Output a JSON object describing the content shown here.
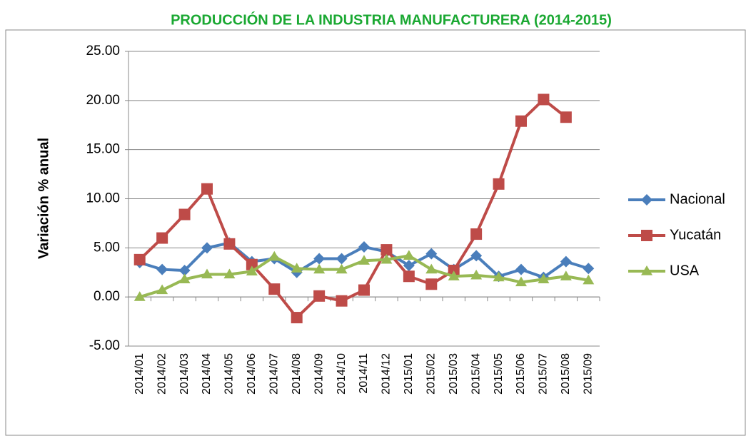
{
  "chart_data": {
    "type": "line",
    "title": "PRODUCCIÓN DE LA INDUSTRIA MANUFACTURERA (2014-2015)",
    "y_label": "Variación % anual",
    "categories": [
      "2014/01",
      "2014/02",
      "2014/03",
      "2014/04",
      "2014/05",
      "2014/06",
      "2014/07",
      "2014/08",
      "2014/09",
      "2014/10",
      "2014/11",
      "2014/12",
      "2015/01",
      "2015/02",
      "2015/03",
      "2015/04",
      "2015/05",
      "2015/06",
      "2015/07",
      "2015/08",
      "2015/09"
    ],
    "series": [
      {
        "name": "Nacional",
        "color": "#4a7ebb",
        "marker": "diamond",
        "values": [
          3.5,
          2.8,
          2.7,
          5.0,
          5.5,
          3.6,
          3.9,
          2.5,
          3.9,
          3.9,
          5.1,
          4.6,
          3.2,
          4.4,
          2.8,
          4.2,
          2.1,
          2.8,
          2.0,
          3.6,
          2.9
        ]
      },
      {
        "name": "Yucatán",
        "color": "#be4b48",
        "marker": "square",
        "values": [
          3.8,
          6.0,
          8.4,
          11.0,
          5.4,
          3.3,
          0.8,
          -2.1,
          0.1,
          -0.4,
          0.7,
          4.8,
          2.1,
          1.3,
          2.7,
          6.4,
          11.5,
          17.9,
          20.1,
          18.3,
          null
        ]
      },
      {
        "name": "USA",
        "color": "#98b954",
        "marker": "triangle",
        "values": [
          0.0,
          0.7,
          1.8,
          2.3,
          2.3,
          2.6,
          4.1,
          2.9,
          2.8,
          2.8,
          3.7,
          3.8,
          4.2,
          2.8,
          2.1,
          2.2,
          2.0,
          1.5,
          1.8,
          2.1,
          1.7
        ]
      }
    ],
    "ylim": [
      -5,
      25
    ],
    "yticks": [
      {
        "value": -5,
        "label": "-5.00"
      },
      {
        "value": 0,
        "label": "0.00"
      },
      {
        "value": 5,
        "label": "5.00"
      },
      {
        "value": 10,
        "label": "10.00"
      },
      {
        "value": 15,
        "label": "15.00"
      },
      {
        "value": 20,
        "label": "20.00"
      },
      {
        "value": 25,
        "label": "25.00"
      }
    ],
    "grid": true,
    "legend": "right",
    "title_color": "#1aa832"
  }
}
